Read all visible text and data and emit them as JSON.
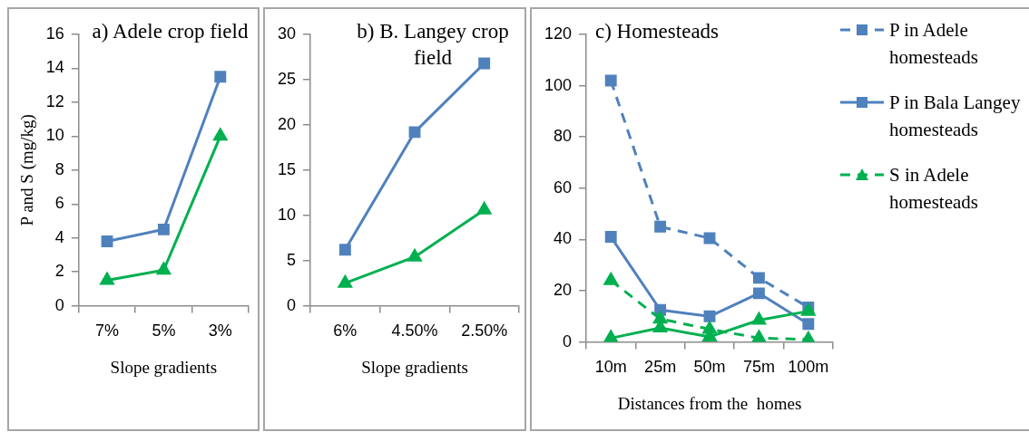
{
  "chart_data": [
    {
      "type": "line",
      "title": "a) Adele crop field",
      "xlabel": "Slope gradients",
      "ylabel": "P and S (mg/kg)",
      "categories": [
        "7%",
        "5%",
        "3%"
      ],
      "series": [
        {
          "color": "#4f81bd",
          "values": [
            3.8,
            4.5,
            13.5
          ],
          "marker": "square",
          "line_style": "solid"
        },
        {
          "color": "#00b050",
          "values": [
            1.5,
            2.1,
            10.0
          ],
          "marker": "triangle",
          "line_style": "solid"
        }
      ],
      "ylim": [
        0,
        16
      ],
      "yticks": [
        0,
        2,
        4,
        6,
        8,
        10,
        12,
        14,
        16
      ],
      "grid": false
    },
    {
      "type": "line",
      "title": "b) B. Langey crop field",
      "xlabel": "Slope gradients",
      "categories": [
        "6%",
        "4.50%",
        "2.50%"
      ],
      "series": [
        {
          "color": "#4f81bd",
          "values": [
            6.2,
            19.2,
            26.8
          ],
          "marker": "square",
          "line_style": "solid"
        },
        {
          "color": "#00b050",
          "values": [
            2.5,
            5.4,
            10.6
          ],
          "marker": "triangle",
          "line_style": "solid"
        }
      ],
      "ylim": [
        0,
        30
      ],
      "yticks": [
        0,
        5,
        10,
        15,
        20,
        25,
        30
      ],
      "grid": false
    },
    {
      "type": "line",
      "title": "c) Homesteads",
      "xlabel": "Distances from the  homes",
      "categories": [
        "10m",
        "25m",
        "50m",
        "75m",
        "100m"
      ],
      "series": [
        {
          "name": "P in Adele homesteads",
          "color": "#4f81bd",
          "values": [
            102,
            45,
            40.5,
            25,
            13.5
          ],
          "marker": "square",
          "line_style": "dashed"
        },
        {
          "name": "P in Bala Langey homesteads",
          "color": "#4f81bd",
          "values": [
            41,
            12.5,
            10,
            19,
            7
          ],
          "marker": "square",
          "line_style": "solid"
        },
        {
          "name": "S in Adele homesteads",
          "color": "#00b050",
          "values": [
            24,
            9,
            5,
            1.5,
            1
          ],
          "marker": "triangle",
          "line_style": "dashed"
        },
        {
          "color": "#00b050",
          "values": [
            1.5,
            5.5,
            2,
            8.5,
            12
          ],
          "marker": "triangle",
          "line_style": "solid"
        }
      ],
      "ylim": [
        0,
        120
      ],
      "yticks": [
        0,
        20,
        40,
        60,
        80,
        100,
        120
      ],
      "grid": false,
      "legend": "right"
    }
  ]
}
